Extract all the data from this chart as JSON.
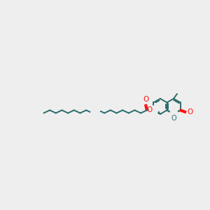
{
  "bg_color": "#eeeeee",
  "bond_color": "#2d6b6b",
  "o_color": "#ff1111",
  "lw": 1.4,
  "figsize": [
    3.0,
    3.0
  ],
  "dpi": 100,
  "xlim": [
    -0.5,
    10.2
  ],
  "ylim": [
    3.8,
    6.5
  ]
}
